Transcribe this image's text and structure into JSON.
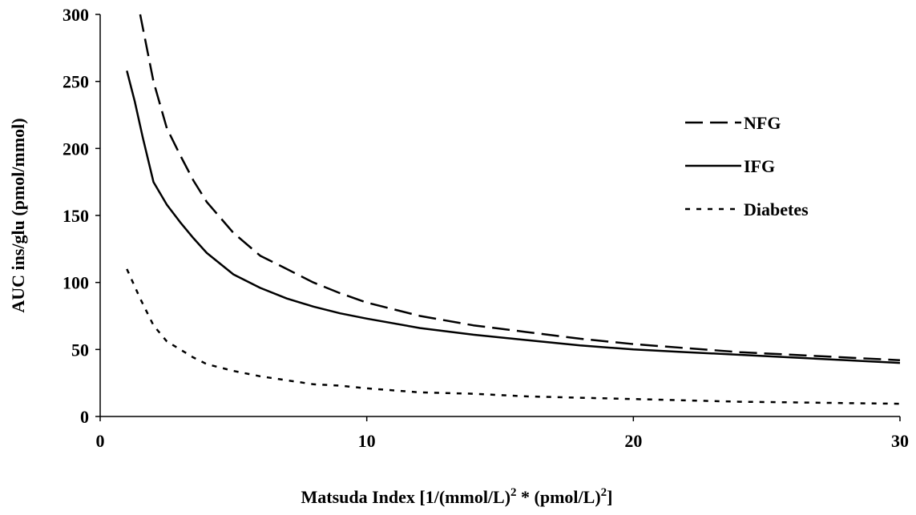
{
  "chart_data": {
    "type": "line",
    "xlabel_main": "Matsuda Index [1/(mmol/L)",
    "xlabel_sup1": "2",
    "xlabel_mid": " * (pmol/L)",
    "xlabel_sup2": "2",
    "xlabel_end": "]",
    "ylabel": "AUC ins/glu (pmol/mmol)",
    "xlim": [
      0,
      30
    ],
    "ylim": [
      0,
      300
    ],
    "xticks": [
      "0",
      "10",
      "20",
      "30"
    ],
    "yticks": [
      "0",
      "50",
      "100",
      "150",
      "200",
      "250",
      "300"
    ],
    "grid": false,
    "legend_position": "right",
    "series": [
      {
        "name": "NFG",
        "style": "dashed",
        "x": [
          1.5,
          2,
          2.5,
          3,
          3.5,
          4,
          5,
          6,
          7,
          8,
          9,
          10,
          12,
          14,
          16,
          18,
          20,
          22,
          24,
          26,
          28,
          30
        ],
        "y": [
          300,
          250,
          215,
          195,
          176,
          160,
          137,
          120,
          110,
          100,
          92,
          85,
          75,
          68,
          63,
          58,
          54,
          51,
          48,
          46,
          44,
          42
        ]
      },
      {
        "name": "IFG",
        "style": "solid",
        "x": [
          1,
          1.3,
          1.6,
          2,
          2.5,
          3,
          3.5,
          4,
          5,
          6,
          7,
          8,
          9,
          10,
          12,
          14,
          16,
          18,
          20,
          22,
          24,
          26,
          28,
          30
        ],
        "y": [
          258,
          235,
          208,
          175,
          158,
          145,
          133,
          122,
          106,
          96,
          88,
          82,
          77,
          73,
          66,
          61,
          57,
          53,
          50,
          48,
          46,
          44,
          42,
          40
        ]
      },
      {
        "name": "Diabetes",
        "style": "dotted",
        "x": [
          1,
          1.5,
          2,
          2.5,
          3,
          3.5,
          4,
          5,
          6,
          7,
          8,
          9,
          10,
          12,
          14,
          16,
          18,
          20,
          22,
          24,
          26,
          28,
          30
        ],
        "y": [
          110,
          88,
          68,
          56,
          50,
          44,
          39,
          34,
          30,
          27,
          24,
          23,
          21,
          18,
          17,
          15,
          14,
          13,
          12,
          11,
          10.5,
          10,
          9.5
        ]
      }
    ]
  }
}
